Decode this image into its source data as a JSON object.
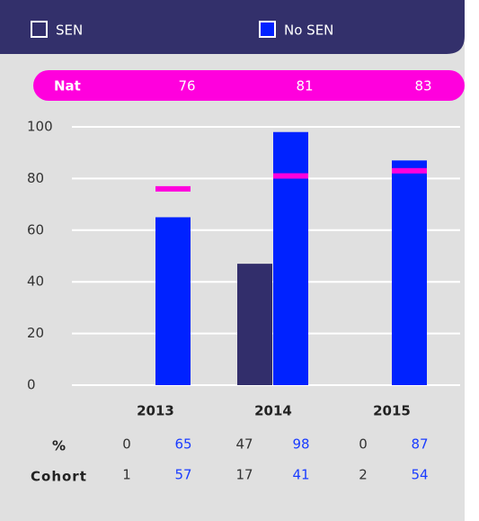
{
  "chart_data": {
    "type": "bar",
    "categories": [
      "2013",
      "2014",
      "2015"
    ],
    "series": [
      {
        "name": "SEN",
        "color": "#322e6b",
        "values": [
          0,
          47,
          0
        ],
        "cohort": [
          1,
          17,
          2
        ]
      },
      {
        "name": "No SEN",
        "color": "#0022ff",
        "values": [
          65,
          98,
          87
        ],
        "cohort": [
          57,
          41,
          54
        ]
      }
    ],
    "national": {
      "name": "Nat",
      "color": "#ff00dd",
      "values": [
        76,
        81,
        83
      ]
    },
    "row_labels": [
      "%",
      "Cohort"
    ],
    "ylim": [
      0,
      100
    ],
    "yticks": [
      0,
      20,
      40,
      60,
      80,
      100
    ],
    "grid": true
  }
}
